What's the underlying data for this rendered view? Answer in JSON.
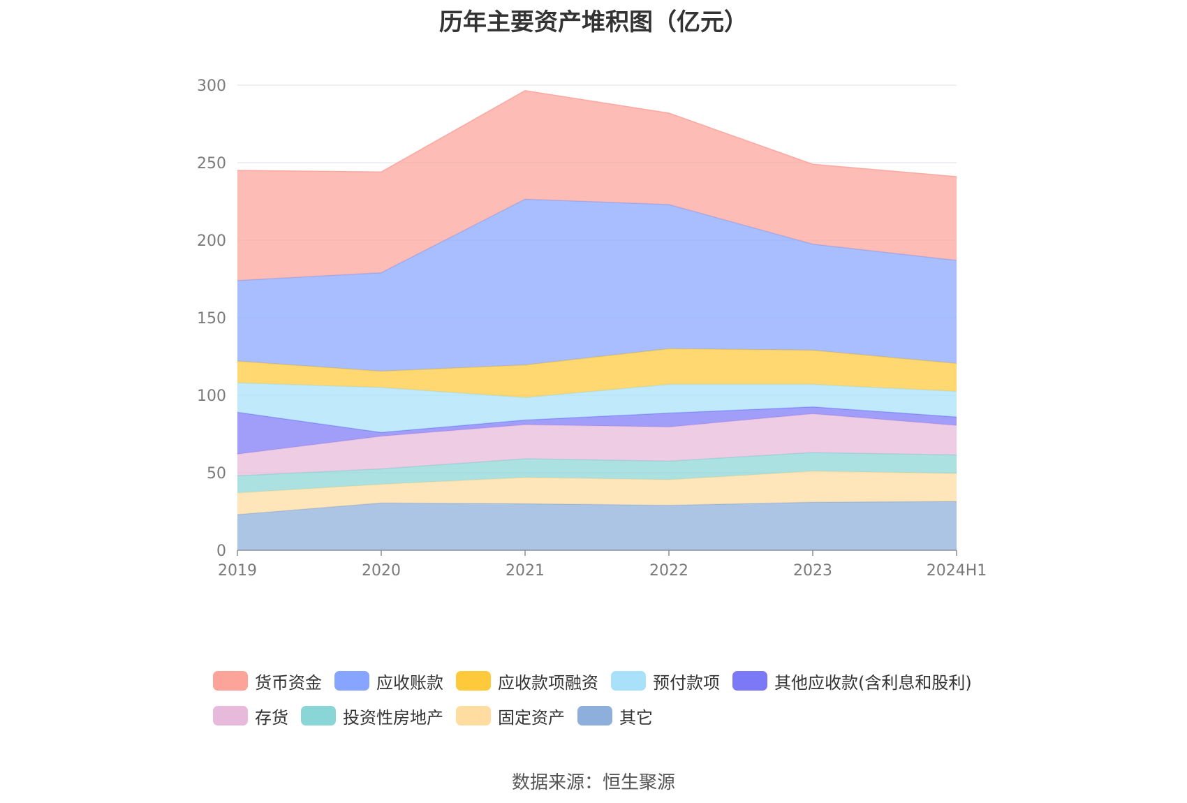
{
  "chart_data": {
    "type": "area",
    "stacked": true,
    "title": "历年主要资产堆积图（亿元）",
    "categories": [
      "2019",
      "2020",
      "2021",
      "2022",
      "2023",
      "2024H1"
    ],
    "ylim": [
      0,
      300
    ],
    "yticks": [
      0,
      50,
      100,
      150,
      200,
      250,
      300
    ],
    "grid": true,
    "legend_position": "bottom",
    "series": [
      {
        "name": "其它",
        "color": "#8eaedb",
        "values": [
          23,
          30.5,
          30,
          29,
          31,
          31.5
        ]
      },
      {
        "name": "固定资产",
        "color": "#ffdca0",
        "values": [
          14,
          12,
          17,
          16.5,
          20,
          18
        ]
      },
      {
        "name": "投资性房地产",
        "color": "#8ad6d6",
        "values": [
          11,
          10,
          12,
          12,
          12,
          12
        ]
      },
      {
        "name": "存货",
        "color": "#e7b9da",
        "values": [
          14,
          21,
          22,
          22,
          25,
          19
        ]
      },
      {
        "name": "其他应收款(含利息和股利)",
        "color": "#7b79f5",
        "values": [
          27,
          2.5,
          3,
          9,
          4.5,
          5.5
        ]
      },
      {
        "name": "预付款项",
        "color": "#a8e1f9",
        "values": [
          19,
          29,
          14.5,
          18.5,
          14.5,
          16.5
        ]
      },
      {
        "name": "应收款项融资",
        "color": "#ffc93c",
        "values": [
          14,
          10.5,
          21,
          23,
          22,
          18
        ]
      },
      {
        "name": "应收账款",
        "color": "#87a5ff",
        "values": [
          52,
          63.5,
          107,
          93,
          68.5,
          66.5
        ]
      },
      {
        "name": "货币资金",
        "color": "#fca39a",
        "values": [
          71,
          65,
          70,
          59,
          51.5,
          54
        ]
      }
    ],
    "legend_rows": [
      [
        {
          "name": "货币资金",
          "color": "#fca39a"
        },
        {
          "name": "应收账款",
          "color": "#87a5ff"
        },
        {
          "name": "应收款项融资",
          "color": "#ffc93c"
        },
        {
          "name": "预付款项",
          "color": "#a8e1f9"
        },
        {
          "name": "其他应收款(含利息和股利)",
          "color": "#7b79f5"
        }
      ],
      [
        {
          "name": "存货",
          "color": "#e7b9da"
        },
        {
          "name": "投资性房地产",
          "color": "#8ad6d6"
        },
        {
          "name": "固定资产",
          "color": "#ffdca0"
        },
        {
          "name": "其它",
          "color": "#8eaedb"
        }
      ]
    ]
  },
  "source": "数据来源：恒生聚源"
}
